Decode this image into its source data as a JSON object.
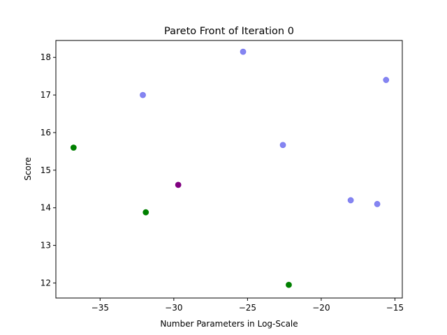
{
  "chart_data": {
    "type": "scatter",
    "title": "Pareto Front of Iteration 0",
    "xlabel": "Number Parameters in Log-Scale",
    "ylabel": "Score",
    "xlim": [
      -38.0,
      -14.5
    ],
    "ylim": [
      11.6,
      18.45
    ],
    "xticks": [
      -35,
      -30,
      -25,
      -20,
      -15
    ],
    "yticks": [
      12,
      13,
      14,
      15,
      16,
      17,
      18
    ],
    "xtick_labels": [
      "−35",
      "−30",
      "−25",
      "−20",
      "−15"
    ],
    "ytick_labels": [
      "12",
      "13",
      "14",
      "15",
      "16",
      "17",
      "18"
    ],
    "grid": false,
    "series": [
      {
        "color": "#6666ee",
        "opacity": 0.8,
        "points": [
          {
            "x": -25.3,
            "y": 18.15
          },
          {
            "x": -15.6,
            "y": 17.4
          },
          {
            "x": -32.1,
            "y": 17.0
          },
          {
            "x": -22.6,
            "y": 15.67
          },
          {
            "x": -18.0,
            "y": 14.2
          },
          {
            "x": -16.2,
            "y": 14.1
          }
        ]
      },
      {
        "color": "#008000",
        "opacity": 1,
        "points": [
          {
            "x": -36.8,
            "y": 15.6
          },
          {
            "x": -31.9,
            "y": 13.88
          },
          {
            "x": -22.2,
            "y": 11.95
          }
        ]
      },
      {
        "color": "#800080",
        "opacity": 1,
        "points": [
          {
            "x": -29.7,
            "y": 14.61
          }
        ]
      }
    ]
  }
}
